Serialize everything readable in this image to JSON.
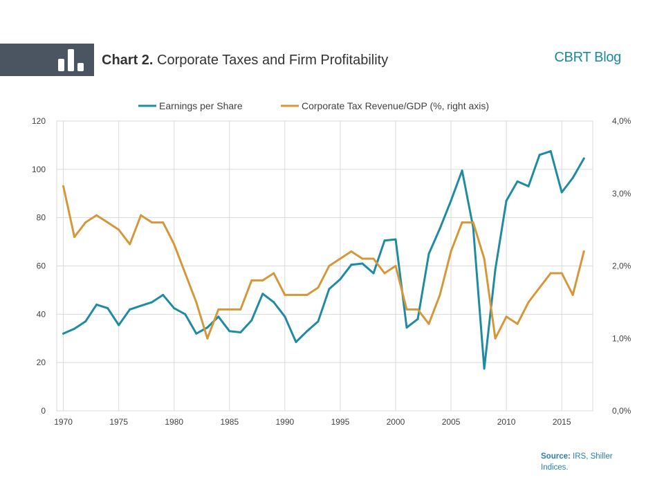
{
  "header": {
    "title_prefix": "Chart 2.",
    "title_text": "Corporate Taxes and Firm Profitability",
    "brand": "CBRT Blog",
    "icon": "bar-chart-icon",
    "bar_color": "#4b5562"
  },
  "footer": {
    "source_label": "Source:",
    "source_text": "IRS, Shiller Indices."
  },
  "chart_data": {
    "type": "line",
    "title": "",
    "xlabel": "",
    "ylabel": "",
    "x": [
      1970,
      1971,
      1972,
      1973,
      1974,
      1975,
      1976,
      1977,
      1978,
      1979,
      1980,
      1981,
      1982,
      1983,
      1984,
      1985,
      1986,
      1987,
      1988,
      1989,
      1990,
      1991,
      1992,
      1993,
      1994,
      1995,
      1996,
      1997,
      1998,
      1999,
      2000,
      2001,
      2002,
      2003,
      2004,
      2005,
      2006,
      2007,
      2008,
      2009,
      2010,
      2011,
      2012,
      2013,
      2014,
      2015,
      2016,
      2017
    ],
    "xlim": [
      1969.4,
      2017.8
    ],
    "x_ticks": [
      "1970",
      "1975",
      "1980",
      "1985",
      "1990",
      "1995",
      "2000",
      "2005",
      "2010",
      "2015"
    ],
    "ylim": [
      0,
      120
    ],
    "y_ticks": [
      "0",
      "20",
      "40",
      "60",
      "80",
      "100",
      "120"
    ],
    "y2lim": [
      0,
      4
    ],
    "y2_ticks": [
      "0,0%",
      "1,0%",
      "2,0%",
      "3,0%",
      "4,0%"
    ],
    "grid": "vertical-and-horizontal",
    "legend_position": "top-center",
    "series": [
      {
        "name": "Earnings per Share",
        "axis": "left",
        "color": "#1f8ba0",
        "values": [
          32,
          34,
          37,
          44,
          42.5,
          35.5,
          42,
          43.5,
          45,
          48,
          42.5,
          40,
          32,
          34.5,
          39,
          33,
          32.5,
          37.5,
          48.5,
          45,
          39,
          28.5,
          33,
          37,
          50.5,
          54.5,
          60.5,
          61,
          57,
          70.5,
          71,
          34.5,
          38,
          65,
          75.5,
          87,
          99.5,
          76,
          17.5,
          58.5,
          87,
          95,
          93,
          106,
          107.5,
          90.5,
          96.5,
          104.5
        ]
      },
      {
        "name": "Corporate Tax Revenue/GDP (%, right axis)",
        "axis": "right",
        "color": "#d4973a",
        "values": [
          3.1,
          2.4,
          2.6,
          2.7,
          2.6,
          2.5,
          2.3,
          2.7,
          2.6,
          2.6,
          2.3,
          1.9,
          1.5,
          1.0,
          1.4,
          1.4,
          1.4,
          1.8,
          1.8,
          1.9,
          1.6,
          1.6,
          1.6,
          1.7,
          2.0,
          2.1,
          2.2,
          2.1,
          2.1,
          1.9,
          2.0,
          1.4,
          1.4,
          1.2,
          1.6,
          2.2,
          2.6,
          2.6,
          2.1,
          1.0,
          1.3,
          1.2,
          1.5,
          1.7,
          1.9,
          1.9,
          1.6,
          2.2
        ]
      }
    ]
  }
}
